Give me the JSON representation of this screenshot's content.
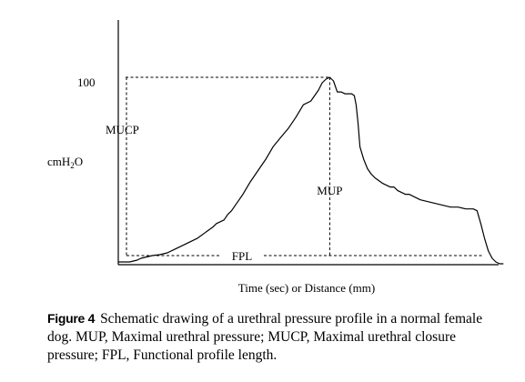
{
  "chart_data": {
    "type": "line",
    "title": "",
    "xlabel": "Time (sec) or Distance (mm)",
    "ylabel": "cmH",
    "ylabel_sub": "2",
    "ylabel_tail": "O",
    "yticks": [
      {
        "value": 100,
        "label": "100"
      }
    ],
    "ylim": [
      0,
      106
    ],
    "xlim": [
      0,
      100
    ],
    "annotations": {
      "mucp": "MUCP",
      "mup": "MUP",
      "fpl": "FPL"
    },
    "series": [
      {
        "x": [
          0,
          3,
          5,
          6,
          8,
          9,
          11,
          13,
          15,
          17,
          19,
          21,
          23,
          25,
          26,
          27,
          28,
          29,
          30,
          31,
          32,
          33,
          35,
          37,
          39,
          41,
          43,
          45,
          47,
          49,
          51,
          52,
          53,
          54,
          55,
          56,
          57,
          58,
          59,
          60,
          61,
          61.8,
          62.5,
          63,
          63.5,
          64,
          65,
          66,
          67,
          68,
          70,
          71,
          72,
          73,
          73.5,
          74,
          75,
          76,
          77,
          79,
          80,
          82,
          84,
          86,
          88,
          90,
          92,
          93,
          94,
          95,
          96,
          97,
          98,
          99,
          100,
          101,
          102
        ],
        "y": [
          -1,
          -1,
          0,
          1,
          2,
          2.5,
          3,
          4,
          6,
          8,
          10,
          12,
          15,
          18,
          20,
          21,
          22,
          25,
          27,
          30,
          33,
          36,
          43,
          49,
          55,
          62,
          67,
          72,
          78,
          85,
          87,
          90,
          93,
          97,
          99,
          100,
          98,
          92,
          92,
          91,
          91,
          91,
          90,
          85,
          75,
          62,
          55,
          50,
          47,
          45,
          42,
          41,
          40,
          40,
          39,
          38,
          37,
          36,
          36,
          34,
          33,
          32,
          31,
          30,
          29,
          29,
          28,
          28,
          28,
          27,
          20,
          12,
          5,
          1,
          -1,
          -2,
          -2
        ]
      }
    ]
  },
  "caption": {
    "label": "Figure 4",
    "text": "Schematic drawing of a urethral pressure profile in a normal female dog. MUP, Maximal urethral pressure; MUCP, Maximal urethral closure pressure; FPL, Functional profile length."
  }
}
